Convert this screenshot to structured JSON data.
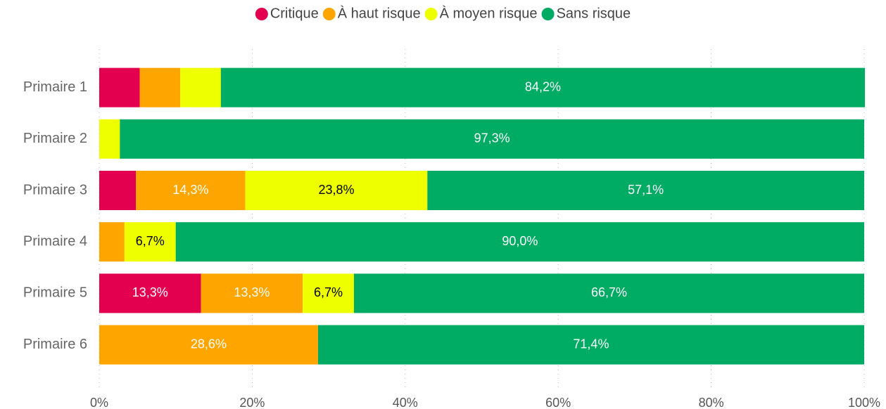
{
  "chart_data": {
    "type": "stacked-bar-horizontal",
    "categories": [
      "Primaire 1",
      "Primaire 2",
      "Primaire 3",
      "Primaire 4",
      "Primaire 5",
      "Primaire 6"
    ],
    "series": [
      {
        "name": "Critique",
        "color": "#e2004f",
        "label_color": "#ffffff",
        "values": [
          5.3,
          0,
          4.8,
          0,
          13.3,
          0
        ],
        "value_labels": [
          null,
          null,
          null,
          null,
          "13,3%",
          null
        ]
      },
      {
        "name": "À haut risque",
        "color": "#ffa500",
        "label_color": "#ffffff",
        "values": [
          5.3,
          0,
          14.3,
          3.3,
          13.3,
          28.6
        ],
        "value_labels": [
          null,
          null,
          "14,3%",
          null,
          "13,3%",
          "28,6%"
        ]
      },
      {
        "name": "À moyen risque",
        "color": "#eeff00",
        "label_color": "#000000",
        "values": [
          5.3,
          2.7,
          23.8,
          6.7,
          6.7,
          0
        ],
        "value_labels": [
          null,
          null,
          "23,8%",
          "6,7%",
          "6,7%",
          null
        ]
      },
      {
        "name": "Sans risque",
        "color": "#00ab63",
        "label_color": "#ffffff",
        "values": [
          84.2,
          97.3,
          57.1,
          90.0,
          66.7,
          71.4
        ],
        "value_labels": [
          "84,2%",
          "97,3%",
          "57,1%",
          "90,0%",
          "66,7%",
          "71,4%"
        ]
      }
    ],
    "xlim": [
      0,
      100
    ],
    "xticks": [
      {
        "value": 0,
        "label": "0%"
      },
      {
        "value": 20,
        "label": "20%"
      },
      {
        "value": 40,
        "label": "40%"
      },
      {
        "value": 60,
        "label": "60%"
      },
      {
        "value": 80,
        "label": "80%"
      },
      {
        "value": 100,
        "label": "100%"
      }
    ],
    "grid": true,
    "legend": "top"
  }
}
